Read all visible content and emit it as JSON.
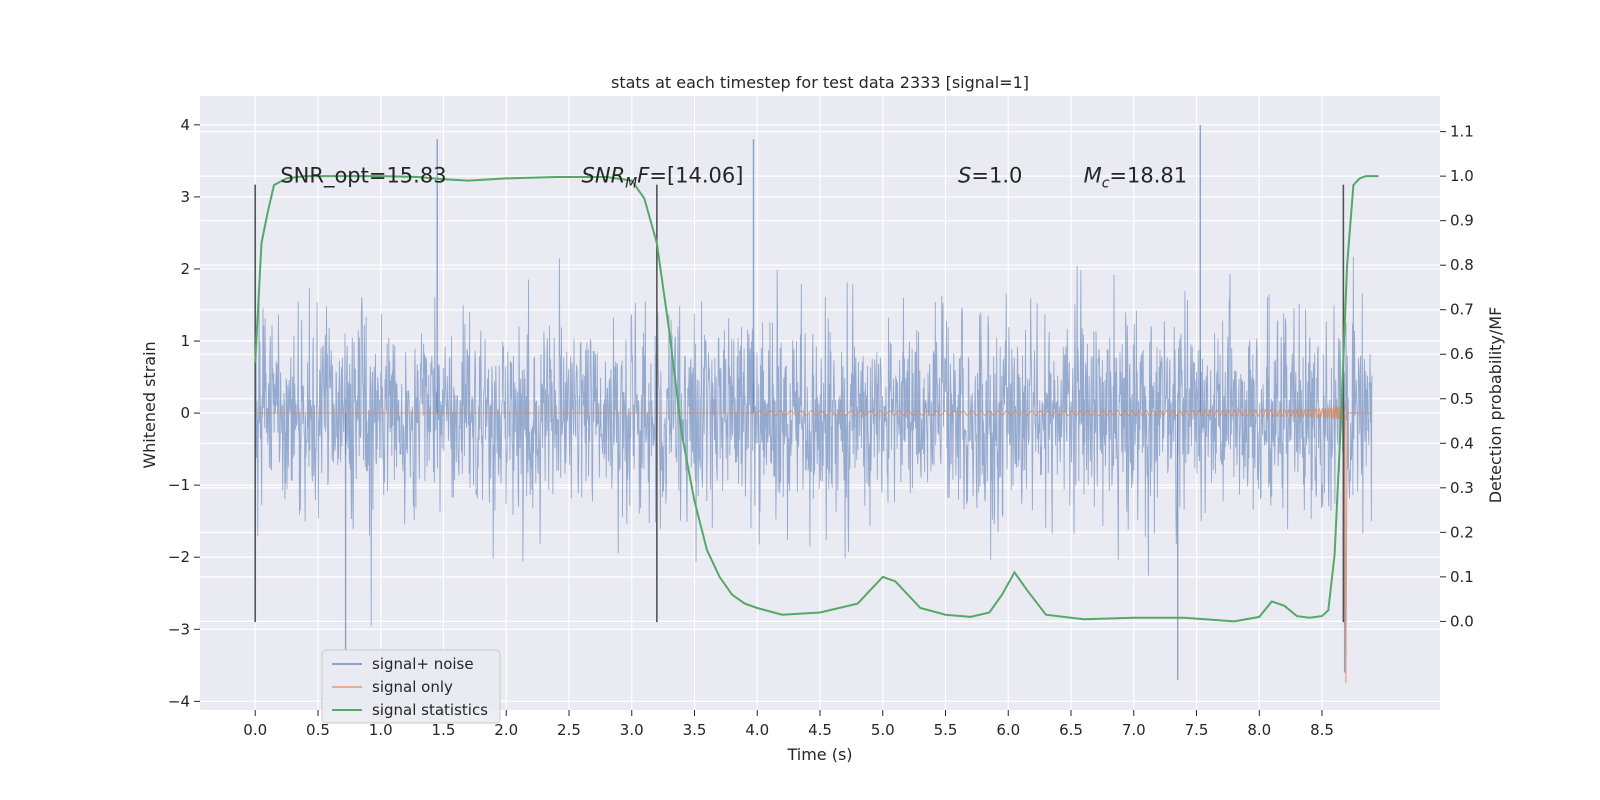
{
  "chart_data": {
    "type": "line",
    "title": "stats at each timestep for test data 2333 [signal=1]",
    "xlabel": "Time (s)",
    "ylabel": "Whitened strain",
    "ylabel_right": "Detection probability/MF",
    "xlim": [
      -0.44,
      9.44
    ],
    "ylim": [
      -4.12,
      4.4
    ],
    "ylim_right": [
      -0.199,
      1.18
    ],
    "x_ticks": [
      0.0,
      0.5,
      1.0,
      1.5,
      2.0,
      2.5,
      3.0,
      3.5,
      4.0,
      4.5,
      5.0,
      5.5,
      6.0,
      6.5,
      7.0,
      7.5,
      8.0,
      8.5
    ],
    "x_tick_labels": [
      "0.0",
      "0.5",
      "1.0",
      "1.5",
      "2.0",
      "2.5",
      "3.0",
      "3.5",
      "4.0",
      "4.5",
      "5.0",
      "5.5",
      "6.0",
      "6.5",
      "7.0",
      "7.5",
      "8.0",
      "8.5"
    ],
    "y_ticks": [
      4,
      3,
      2,
      1,
      0,
      -1,
      -2,
      -3,
      -4
    ],
    "y_tick_labels": [
      "4",
      "3",
      "2",
      "1",
      "0",
      "−1",
      "−2",
      "−3",
      "−4"
    ],
    "y_ticks_right": [
      1.1,
      1.0,
      0.9,
      0.8,
      0.7,
      0.6,
      0.5,
      0.4,
      0.3,
      0.2,
      0.1,
      0.0
    ],
    "y_tick_labels_right": [
      "1.1",
      "1.0",
      "0.9",
      "0.8",
      "0.7",
      "0.6",
      "0.5",
      "0.4",
      "0.3",
      "0.2",
      "0.1",
      "0.0"
    ],
    "noise_x_range": [
      0.0,
      8.9
    ],
    "noise_amplitude_typical": 1.4,
    "noise_peaks": [
      {
        "x": 1.45,
        "y": 3.8
      },
      {
        "x": 3.97,
        "y": 3.8
      },
      {
        "x": 7.53,
        "y": 4.0
      },
      {
        "x": 0.72,
        "y": -3.3
      },
      {
        "x": 7.35,
        "y": -3.7
      },
      {
        "x": 8.68,
        "y": -3.6
      }
    ],
    "signal_only": {
      "x_start": 4.0,
      "x_merger": 8.68,
      "amplitude_at_start": 0.02,
      "amplitude_peak": 3.25,
      "amplitude_peak_negative": -3.75
    },
    "vertical_markers": [
      {
        "x": 0.0,
        "y_range": [
          -2.9,
          3.17
        ]
      },
      {
        "x": 3.2,
        "y_range": [
          -2.9,
          3.17
        ]
      },
      {
        "x": 8.67,
        "y_range": [
          -2.9,
          3.17
        ]
      }
    ],
    "series": [
      {
        "name": "signal statistics",
        "axis": "right",
        "color": "#55a868",
        "x": [
          0.0,
          0.05,
          0.1,
          0.15,
          0.25,
          0.4,
          0.6,
          1.0,
          1.3,
          1.5,
          1.7,
          2.0,
          2.4,
          2.8,
          3.0,
          3.1,
          3.2,
          3.3,
          3.4,
          3.5,
          3.6,
          3.7,
          3.8,
          3.9,
          4.0,
          4.2,
          4.5,
          4.8,
          4.9,
          5.0,
          5.1,
          5.3,
          5.5,
          5.7,
          5.85,
          5.95,
          6.05,
          6.15,
          6.3,
          6.6,
          7.0,
          7.4,
          7.8,
          8.0,
          8.1,
          8.2,
          8.3,
          8.4,
          8.5,
          8.55,
          8.6,
          8.65,
          8.7,
          8.75,
          8.8,
          8.85,
          8.95
        ],
        "values": [
          0.58,
          0.85,
          0.92,
          0.98,
          0.995,
          1.0,
          1.0,
          1.0,
          0.998,
          0.993,
          0.99,
          0.995,
          0.998,
          0.998,
          0.99,
          0.95,
          0.85,
          0.65,
          0.42,
          0.27,
          0.16,
          0.1,
          0.06,
          0.04,
          0.03,
          0.015,
          0.02,
          0.04,
          0.07,
          0.1,
          0.09,
          0.03,
          0.015,
          0.01,
          0.02,
          0.06,
          0.11,
          0.07,
          0.015,
          0.005,
          0.008,
          0.008,
          0.0,
          0.01,
          0.045,
          0.035,
          0.012,
          0.008,
          0.012,
          0.025,
          0.15,
          0.45,
          0.8,
          0.98,
          0.995,
          1.0,
          1.0
        ]
      },
      {
        "name": "signal+ noise",
        "axis": "left",
        "color": "#4c72b0"
      },
      {
        "name": "signal only",
        "axis": "left",
        "color": "#dd8452"
      }
    ],
    "legend": {
      "placement": "lower-left",
      "entries": [
        {
          "label": "signal+ noise",
          "color": "#4c72b0"
        },
        {
          "label": "signal only",
          "color": "#dd8452"
        },
        {
          "label": "signal statistics",
          "color": "#55a868"
        }
      ]
    },
    "annotations": [
      {
        "x": 0.2,
        "y": 3.2,
        "base": "SNR_opt=15.83",
        "italic": "",
        "sub": "",
        "rest": ""
      },
      {
        "x": 2.6,
        "y": 3.2,
        "base": "",
        "italic": "SNR",
        "sub": "M",
        "rest_italic": "F",
        "rest": "=[14.06]"
      },
      {
        "x": 5.6,
        "y": 3.2,
        "base": "",
        "italic": "S",
        "sub": "",
        "rest_italic": "",
        "rest": "=1.0"
      },
      {
        "x": 6.6,
        "y": 3.2,
        "base": "",
        "italic": "M",
        "sub": "c",
        "rest_italic": "",
        "rest": "=18.81"
      }
    ],
    "colors": {
      "plot_background": "#eaeaf2",
      "grid": "#ffffff",
      "marker_line": "#555555"
    }
  }
}
